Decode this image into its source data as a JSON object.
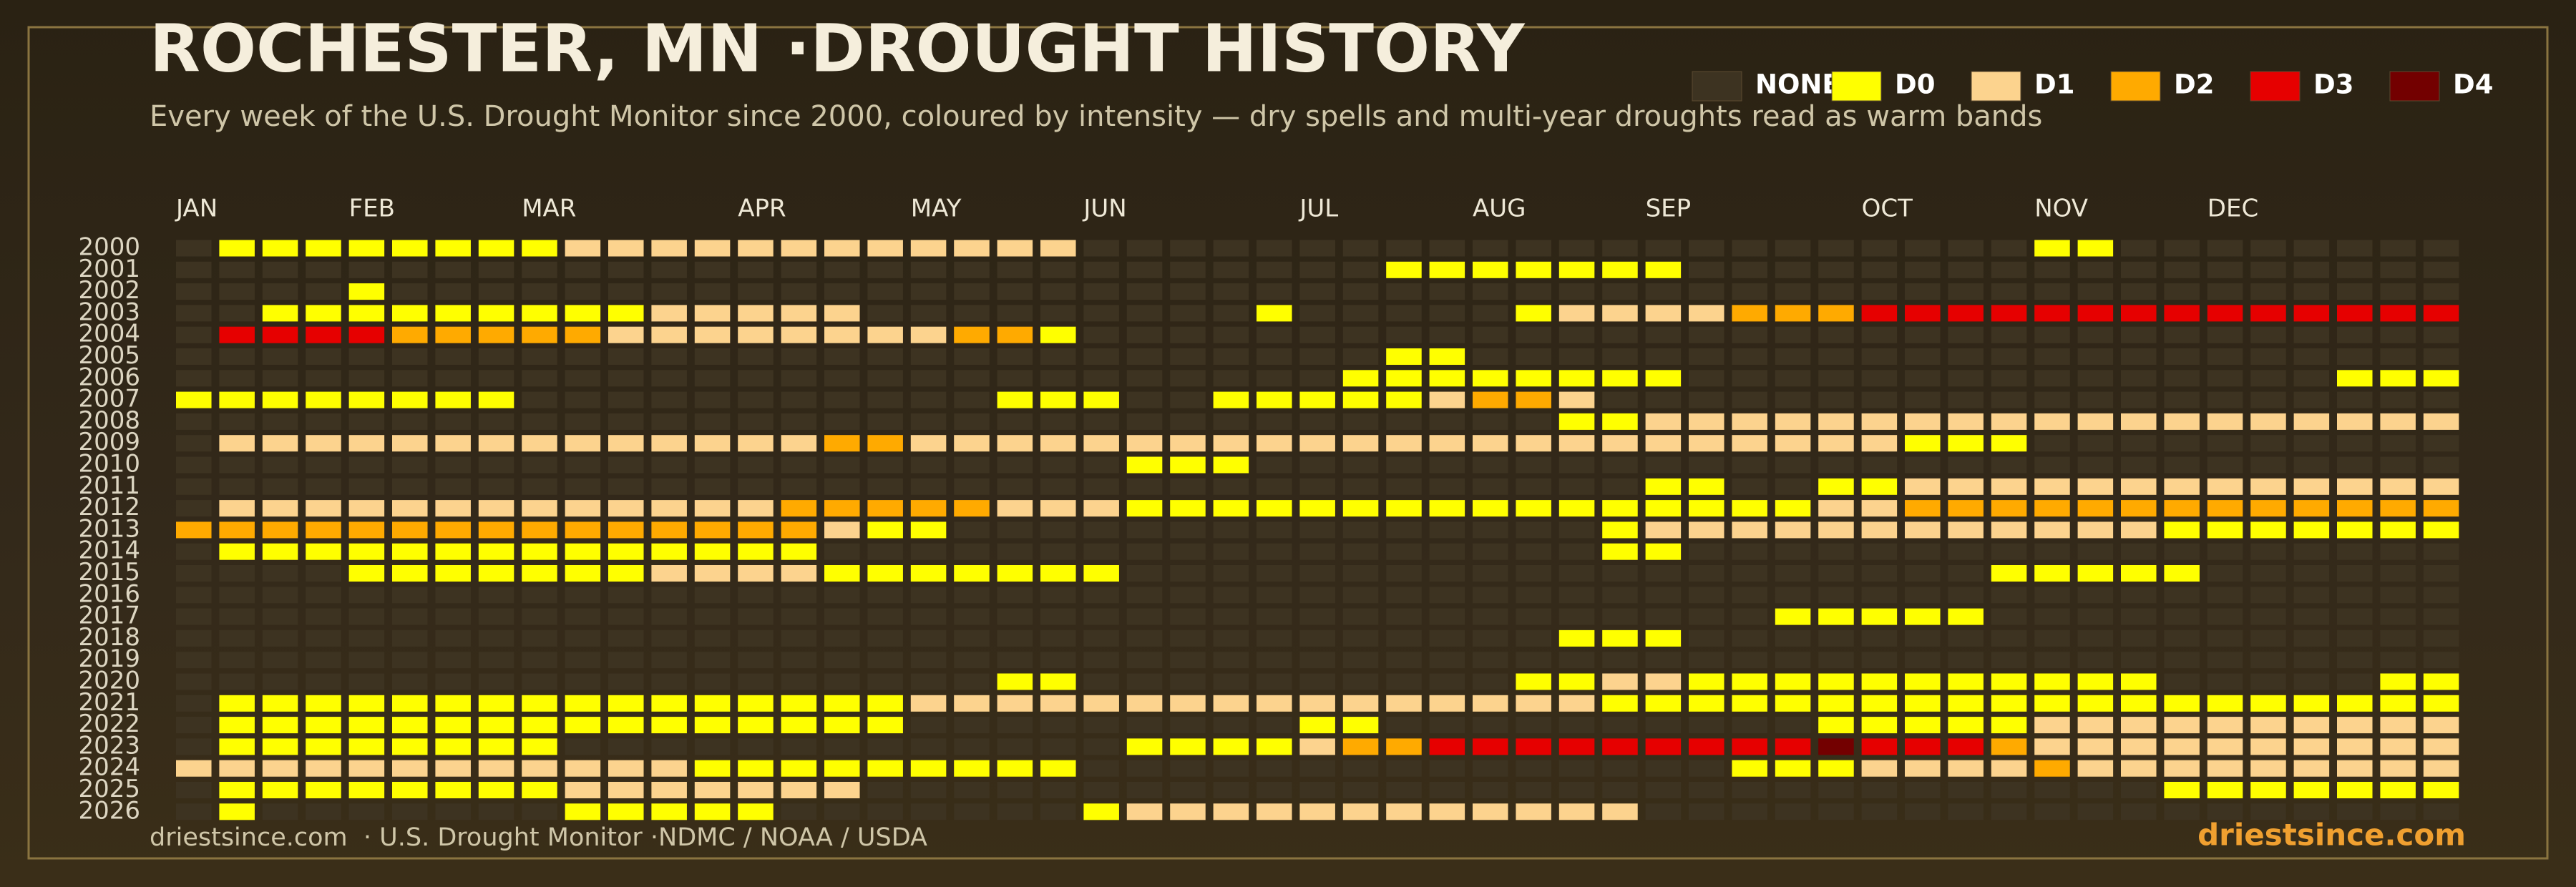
{
  "chart_data": {
    "type": "heatmap",
    "title": "ROCHESTER, MN ·DROUGHT HISTORY",
    "subtitle": "Every week of the U.S. Drought Monitor since 2000, coloured by intensity — dry spells and multi-year droughts read as warm bands",
    "source": "driestsince.com  · U.S. Drought Monitor ·NDMC / NOAA / USDA",
    "brand": "driestsince.com",
    "levels": [
      {
        "value": -1,
        "label": "NONE",
        "color": "#3d3321"
      },
      {
        "value": 0,
        "label": "D0",
        "color": "#ffff00"
      },
      {
        "value": 1,
        "label": "D1",
        "color": "#fcd38e"
      },
      {
        "value": 2,
        "label": "D2",
        "color": "#ffaa00"
      },
      {
        "value": 3,
        "label": "D3",
        "color": "#e60000"
      },
      {
        "value": 4,
        "label": "D4",
        "color": "#730000"
      }
    ],
    "x_categories": [
      "JAN",
      null,
      null,
      null,
      "FEB",
      null,
      null,
      null,
      "MAR",
      null,
      null,
      null,
      null,
      "APR",
      null,
      null,
      null,
      "MAY",
      null,
      null,
      null,
      "JUN",
      null,
      null,
      null,
      null,
      "JUL",
      null,
      null,
      null,
      "AUG",
      null,
      null,
      null,
      "SEP",
      null,
      null,
      null,
      null,
      "OCT",
      null,
      null,
      null,
      "NOV",
      null,
      null,
      null,
      "DEC",
      null,
      null,
      null,
      null,
      null
    ],
    "y_categories": [
      "2000",
      "2001",
      "2002",
      "2003",
      "2004",
      "2005",
      "2006",
      "2007",
      "2008",
      "2009",
      "2010",
      "2011",
      "2012",
      "2013",
      "2014",
      "2015",
      "2016",
      "2017",
      "2018",
      "2019",
      "2020",
      "2021",
      "2022",
      "2023",
      "2024",
      "2025",
      "2026"
    ],
    "values": [
      [
        -1,
        0,
        0,
        0,
        0,
        0,
        0,
        0,
        0,
        1,
        1,
        1,
        1,
        1,
        1,
        1,
        1,
        1,
        1,
        1,
        1,
        -1,
        -1,
        -1,
        -1,
        -1,
        -1,
        -1,
        -1,
        -1,
        -1,
        -1,
        -1,
        -1,
        -1,
        -1,
        -1,
        -1,
        -1,
        -1,
        -1,
        -1,
        -1,
        0,
        0,
        -1,
        -1,
        -1,
        -1,
        -1,
        -1,
        -1,
        -1
      ],
      [
        -1,
        -1,
        -1,
        -1,
        -1,
        -1,
        -1,
        -1,
        -1,
        -1,
        -1,
        -1,
        -1,
        -1,
        -1,
        -1,
        -1,
        -1,
        -1,
        -1,
        -1,
        -1,
        -1,
        -1,
        -1,
        -1,
        -1,
        -1,
        0,
        0,
        0,
        0,
        0,
        0,
        0,
        -1,
        -1,
        -1,
        -1,
        -1,
        -1,
        -1,
        -1,
        -1,
        -1,
        -1,
        -1,
        -1,
        -1,
        -1,
        -1,
        -1,
        -1
      ],
      [
        -1,
        -1,
        -1,
        -1,
        0,
        -1,
        -1,
        -1,
        -1,
        -1,
        -1,
        -1,
        -1,
        -1,
        -1,
        -1,
        -1,
        -1,
        -1,
        -1,
        -1,
        -1,
        -1,
        -1,
        -1,
        -1,
        -1,
        -1,
        -1,
        -1,
        -1,
        -1,
        -1,
        -1,
        -1,
        -1,
        -1,
        -1,
        -1,
        -1,
        -1,
        -1,
        -1,
        -1,
        -1,
        -1,
        -1,
        -1,
        -1,
        -1,
        -1,
        -1,
        -1
      ],
      [
        -1,
        -1,
        0,
        0,
        0,
        0,
        0,
        0,
        0,
        0,
        0,
        1,
        1,
        1,
        1,
        1,
        -1,
        -1,
        -1,
        -1,
        -1,
        -1,
        -1,
        -1,
        -1,
        0,
        -1,
        -1,
        -1,
        -1,
        -1,
        0,
        1,
        1,
        1,
        1,
        2,
        2,
        2,
        3,
        3,
        3,
        3,
        3,
        3,
        3,
        3,
        3,
        3,
        3,
        3,
        3,
        3
      ],
      [
        -1,
        3,
        3,
        3,
        3,
        2,
        2,
        2,
        2,
        2,
        1,
        1,
        1,
        1,
        1,
        1,
        1,
        1,
        2,
        2,
        0,
        -1,
        -1,
        -1,
        -1,
        -1,
        -1,
        -1,
        -1,
        -1,
        -1,
        -1,
        -1,
        -1,
        -1,
        -1,
        -1,
        -1,
        -1,
        -1,
        -1,
        -1,
        -1,
        -1,
        -1,
        -1,
        -1,
        -1,
        -1,
        -1,
        -1,
        -1,
        -1
      ],
      [
        -1,
        -1,
        -1,
        -1,
        -1,
        -1,
        -1,
        -1,
        -1,
        -1,
        -1,
        -1,
        -1,
        -1,
        -1,
        -1,
        -1,
        -1,
        -1,
        -1,
        -1,
        -1,
        -1,
        -1,
        -1,
        -1,
        -1,
        -1,
        0,
        0,
        -1,
        -1,
        -1,
        -1,
        -1,
        -1,
        -1,
        -1,
        -1,
        -1,
        -1,
        -1,
        -1,
        -1,
        -1,
        -1,
        -1,
        -1,
        -1,
        -1,
        -1,
        -1,
        -1
      ],
      [
        -1,
        -1,
        -1,
        -1,
        -1,
        -1,
        -1,
        -1,
        -1,
        -1,
        -1,
        -1,
        -1,
        -1,
        -1,
        -1,
        -1,
        -1,
        -1,
        -1,
        -1,
        -1,
        -1,
        -1,
        -1,
        -1,
        -1,
        0,
        0,
        0,
        0,
        0,
        0,
        0,
        0,
        -1,
        -1,
        -1,
        -1,
        -1,
        -1,
        -1,
        -1,
        -1,
        -1,
        -1,
        -1,
        -1,
        -1,
        -1,
        0,
        0,
        0
      ],
      [
        0,
        0,
        0,
        0,
        0,
        0,
        0,
        0,
        -1,
        -1,
        -1,
        -1,
        -1,
        -1,
        -1,
        -1,
        -1,
        -1,
        -1,
        0,
        0,
        0,
        -1,
        -1,
        0,
        0,
        0,
        0,
        0,
        1,
        2,
        2,
        1,
        -1,
        -1,
        -1,
        -1,
        -1,
        -1,
        -1,
        -1,
        -1,
        -1,
        -1,
        -1,
        -1,
        -1,
        -1,
        -1,
        -1,
        -1,
        -1,
        -1
      ],
      [
        -1,
        -1,
        -1,
        -1,
        -1,
        -1,
        -1,
        -1,
        -1,
        -1,
        -1,
        -1,
        -1,
        -1,
        -1,
        -1,
        -1,
        -1,
        -1,
        -1,
        -1,
        -1,
        -1,
        -1,
        -1,
        -1,
        -1,
        -1,
        -1,
        -1,
        -1,
        -1,
        0,
        0,
        1,
        1,
        1,
        1,
        1,
        1,
        1,
        1,
        1,
        1,
        1,
        1,
        1,
        1,
        1,
        1,
        1,
        1,
        1
      ],
      [
        -1,
        1,
        1,
        1,
        1,
        1,
        1,
        1,
        1,
        1,
        1,
        1,
        1,
        1,
        1,
        2,
        2,
        1,
        1,
        1,
        1,
        1,
        1,
        1,
        1,
        1,
        1,
        1,
        1,
        1,
        1,
        1,
        1,
        1,
        1,
        1,
        1,
        1,
        1,
        1,
        0,
        0,
        0,
        -1,
        -1,
        -1,
        -1,
        -1,
        -1,
        -1,
        -1,
        -1,
        -1
      ],
      [
        -1,
        -1,
        -1,
        -1,
        -1,
        -1,
        -1,
        -1,
        -1,
        -1,
        -1,
        -1,
        -1,
        -1,
        -1,
        -1,
        -1,
        -1,
        -1,
        -1,
        -1,
        -1,
        0,
        0,
        0,
        -1,
        -1,
        -1,
        -1,
        -1,
        -1,
        -1,
        -1,
        -1,
        -1,
        -1,
        -1,
        -1,
        -1,
        -1,
        -1,
        -1,
        -1,
        -1,
        -1,
        -1,
        -1,
        -1,
        -1,
        -1,
        -1,
        -1,
        -1
      ],
      [
        -1,
        -1,
        -1,
        -1,
        -1,
        -1,
        -1,
        -1,
        -1,
        -1,
        -1,
        -1,
        -1,
        -1,
        -1,
        -1,
        -1,
        -1,
        -1,
        -1,
        -1,
        -1,
        -1,
        -1,
        -1,
        -1,
        -1,
        -1,
        -1,
        -1,
        -1,
        -1,
        -1,
        -1,
        0,
        0,
        -1,
        -1,
        0,
        0,
        1,
        1,
        1,
        1,
        1,
        1,
        1,
        1,
        1,
        1,
        1,
        1,
        1
      ],
      [
        -1,
        1,
        1,
        1,
        1,
        1,
        1,
        1,
        1,
        1,
        1,
        1,
        1,
        1,
        2,
        2,
        2,
        2,
        2,
        1,
        1,
        1,
        0,
        0,
        0,
        0,
        0,
        0,
        0,
        0,
        0,
        0,
        0,
        0,
        0,
        0,
        0,
        0,
        1,
        1,
        2,
        2,
        2,
        2,
        2,
        2,
        2,
        2,
        2,
        2,
        2,
        2,
        2
      ],
      [
        2,
        2,
        2,
        2,
        2,
        2,
        2,
        2,
        2,
        2,
        2,
        2,
        2,
        2,
        2,
        1,
        0,
        0,
        -1,
        -1,
        -1,
        -1,
        -1,
        -1,
        -1,
        -1,
        -1,
        -1,
        -1,
        -1,
        -1,
        -1,
        -1,
        0,
        1,
        1,
        1,
        1,
        1,
        1,
        1,
        1,
        1,
        1,
        1,
        1,
        0,
        0,
        0,
        0,
        0,
        0,
        0
      ],
      [
        -1,
        0,
        0,
        0,
        0,
        0,
        0,
        0,
        0,
        0,
        0,
        0,
        0,
        0,
        0,
        -1,
        -1,
        -1,
        -1,
        -1,
        -1,
        -1,
        -1,
        -1,
        -1,
        -1,
        -1,
        -1,
        -1,
        -1,
        -1,
        -1,
        -1,
        0,
        0,
        -1,
        -1,
        -1,
        -1,
        -1,
        -1,
        -1,
        -1,
        -1,
        -1,
        -1,
        -1,
        -1,
        -1,
        -1,
        -1,
        -1,
        -1
      ],
      [
        -1,
        -1,
        -1,
        -1,
        0,
        0,
        0,
        0,
        0,
        0,
        0,
        1,
        1,
        1,
        1,
        0,
        0,
        0,
        0,
        0,
        0,
        0,
        -1,
        -1,
        -1,
        -1,
        -1,
        -1,
        -1,
        -1,
        -1,
        -1,
        -1,
        -1,
        -1,
        -1,
        -1,
        -1,
        -1,
        -1,
        -1,
        -1,
        0,
        0,
        0,
        0,
        0,
        -1,
        -1,
        -1,
        -1,
        -1,
        -1
      ],
      [
        -1,
        -1,
        -1,
        -1,
        -1,
        -1,
        -1,
        -1,
        -1,
        -1,
        -1,
        -1,
        -1,
        -1,
        -1,
        -1,
        -1,
        -1,
        -1,
        -1,
        -1,
        -1,
        -1,
        -1,
        -1,
        -1,
        -1,
        -1,
        -1,
        -1,
        -1,
        -1,
        -1,
        -1,
        -1,
        -1,
        -1,
        -1,
        -1,
        -1,
        -1,
        -1,
        -1,
        -1,
        -1,
        -1,
        -1,
        -1,
        -1,
        -1,
        -1,
        -1,
        -1
      ],
      [
        -1,
        -1,
        -1,
        -1,
        -1,
        -1,
        -1,
        -1,
        -1,
        -1,
        -1,
        -1,
        -1,
        -1,
        -1,
        -1,
        -1,
        -1,
        -1,
        -1,
        -1,
        -1,
        -1,
        -1,
        -1,
        -1,
        -1,
        -1,
        -1,
        -1,
        -1,
        -1,
        -1,
        -1,
        -1,
        -1,
        -1,
        0,
        0,
        0,
        0,
        0,
        -1,
        -1,
        -1,
        -1,
        -1,
        -1,
        -1,
        -1,
        -1,
        -1,
        -1
      ],
      [
        -1,
        -1,
        -1,
        -1,
        -1,
        -1,
        -1,
        -1,
        -1,
        -1,
        -1,
        -1,
        -1,
        -1,
        -1,
        -1,
        -1,
        -1,
        -1,
        -1,
        -1,
        -1,
        -1,
        -1,
        -1,
        -1,
        -1,
        -1,
        -1,
        -1,
        -1,
        -1,
        0,
        0,
        0,
        -1,
        -1,
        -1,
        -1,
        -1,
        -1,
        -1,
        -1,
        -1,
        -1,
        -1,
        -1,
        -1,
        -1,
        -1,
        -1,
        -1,
        -1
      ],
      [
        -1,
        -1,
        -1,
        -1,
        -1,
        -1,
        -1,
        -1,
        -1,
        -1,
        -1,
        -1,
        -1,
        -1,
        -1,
        -1,
        -1,
        -1,
        -1,
        -1,
        -1,
        -1,
        -1,
        -1,
        -1,
        -1,
        -1,
        -1,
        -1,
        -1,
        -1,
        -1,
        -1,
        -1,
        -1,
        -1,
        -1,
        -1,
        -1,
        -1,
        -1,
        -1,
        -1,
        -1,
        -1,
        -1,
        -1,
        -1,
        -1,
        -1,
        -1,
        -1,
        -1
      ],
      [
        -1,
        -1,
        -1,
        -1,
        -1,
        -1,
        -1,
        -1,
        -1,
        -1,
        -1,
        -1,
        -1,
        -1,
        -1,
        -1,
        -1,
        -1,
        -1,
        0,
        0,
        -1,
        -1,
        -1,
        -1,
        -1,
        -1,
        -1,
        -1,
        -1,
        -1,
        0,
        0,
        1,
        1,
        0,
        0,
        0,
        0,
        0,
        0,
        0,
        0,
        0,
        0,
        0,
        -1,
        -1,
        -1,
        -1,
        -1,
        0,
        0
      ],
      [
        -1,
        0,
        0,
        0,
        0,
        0,
        0,
        0,
        0,
        0,
        0,
        0,
        0,
        0,
        0,
        0,
        0,
        1,
        1,
        1,
        1,
        1,
        1,
        1,
        1,
        1,
        1,
        1,
        1,
        1,
        1,
        1,
        1,
        0,
        0,
        0,
        0,
        0,
        0,
        0,
        0,
        0,
        0,
        0,
        0,
        0,
        0,
        0,
        0,
        0,
        0,
        0,
        0
      ],
      [
        -1,
        0,
        0,
        0,
        0,
        0,
        0,
        0,
        0,
        0,
        0,
        0,
        0,
        0,
        0,
        0,
        0,
        -1,
        -1,
        -1,
        -1,
        -1,
        -1,
        -1,
        -1,
        -1,
        0,
        0,
        -1,
        -1,
        -1,
        -1,
        -1,
        -1,
        -1,
        -1,
        -1,
        -1,
        0,
        0,
        0,
        0,
        0,
        1,
        1,
        1,
        1,
        1,
        1,
        1,
        1,
        1,
        1
      ],
      [
        -1,
        0,
        0,
        0,
        0,
        0,
        0,
        0,
        0,
        -1,
        -1,
        -1,
        -1,
        -1,
        -1,
        -1,
        -1,
        -1,
        -1,
        -1,
        -1,
        -1,
        0,
        0,
        0,
        0,
        1,
        2,
        2,
        3,
        3,
        3,
        3,
        3,
        3,
        3,
        3,
        3,
        4,
        3,
        3,
        3,
        2,
        1,
        1,
        1,
        1,
        1,
        1,
        1,
        1,
        1,
        1
      ],
      [
        1,
        1,
        1,
        1,
        1,
        1,
        1,
        1,
        1,
        1,
        1,
        1,
        0,
        0,
        0,
        0,
        0,
        0,
        0,
        0,
        0,
        -1,
        -1,
        -1,
        -1,
        -1,
        -1,
        -1,
        -1,
        -1,
        -1,
        -1,
        -1,
        -1,
        -1,
        -1,
        0,
        0,
        0,
        1,
        1,
        1,
        1,
        2,
        1,
        1,
        1,
        1,
        1,
        1,
        1,
        1,
        1
      ],
      [
        -1,
        0,
        0,
        0,
        0,
        0,
        0,
        0,
        0,
        1,
        1,
        1,
        1,
        1,
        1,
        1,
        -1,
        -1,
        -1,
        -1,
        -1,
        -1,
        -1,
        -1,
        -1,
        -1,
        -1,
        -1,
        -1,
        -1,
        -1,
        -1,
        -1,
        -1,
        -1,
        -1,
        -1,
        -1,
        -1,
        -1,
        -1,
        -1,
        -1,
        -1,
        -1,
        -1,
        0,
        0,
        0,
        0,
        0,
        0,
        0
      ],
      [
        -1,
        0,
        -1,
        -1,
        -1,
        -1,
        -1,
        -1,
        -1,
        0,
        0,
        0,
        0,
        0,
        -1,
        -1,
        -1,
        -1,
        -1,
        -1,
        -1,
        0,
        1,
        1,
        1,
        1,
        1,
        1,
        1,
        1,
        1,
        1,
        1,
        1,
        -1,
        -1,
        -1,
        -1,
        -1,
        -1,
        -1,
        -1,
        -1,
        -1,
        -1,
        -1,
        -1,
        -1,
        -1,
        -1,
        -1,
        -1,
        -1
      ]
    ]
  }
}
